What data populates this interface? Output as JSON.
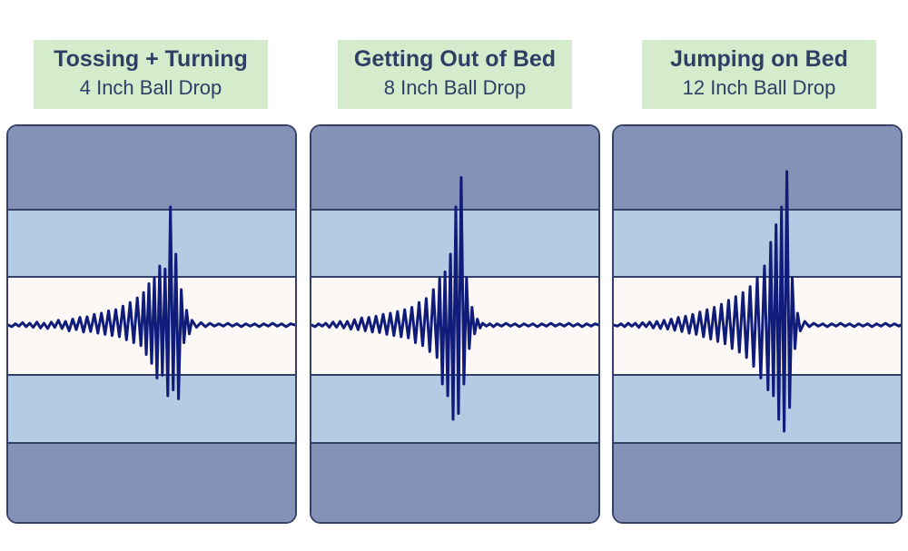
{
  "colors": {
    "title_bg": "#d4eccb",
    "title_text": "#2e3f66",
    "outer_band": "#8392b6",
    "middle_band": "#b3cce3",
    "center_band": "#fcf8f6",
    "band_border": "#34406a",
    "wave": "#101c7a"
  },
  "chart_data": [
    {
      "type": "line",
      "title": "Tossing + Turning",
      "subtitle": "4 Inch Ball Drop",
      "series": [
        {
          "x": [
            0,
            4,
            8,
            12,
            16,
            20,
            24,
            28,
            32,
            36,
            40,
            44,
            48,
            52,
            56,
            60,
            64,
            68,
            72,
            76,
            80,
            84,
            88,
            92,
            96,
            100,
            104,
            108,
            112,
            116,
            120,
            124,
            128,
            132,
            136,
            140,
            144,
            148,
            151,
            154,
            157,
            160,
            163,
            166,
            169,
            172,
            175,
            178,
            181,
            184,
            187,
            190,
            193,
            196,
            199,
            202,
            205,
            210,
            215,
            220,
            225,
            230,
            235,
            240,
            245,
            250,
            255,
            260,
            265,
            270,
            275,
            280,
            285,
            290,
            295,
            300,
            305,
            310,
            315,
            320
          ],
          "y": [
            0,
            -0.3,
            0.2,
            -0.2,
            0.4,
            -0.3,
            0.3,
            -0.4,
            0.5,
            -0.5,
            0.3,
            -0.6,
            0.5,
            -0.4,
            0.8,
            -0.6,
            0.6,
            -1.0,
            1.0,
            -0.8,
            1.3,
            -1.2,
            1.4,
            -1.1,
            1.8,
            -1.4,
            2.0,
            -1.6,
            2.4,
            -1.8,
            2.6,
            -2.0,
            3.2,
            -2.5,
            3.8,
            -3.0,
            4.6,
            -3.5,
            5.5,
            -5.0,
            7.0,
            -6.5,
            8.0,
            -9.0,
            10.0,
            -8.5,
            9.5,
            -12.0,
            20.0,
            -11.0,
            12.0,
            -12.5,
            6.0,
            -3.0,
            2.5,
            -1.5,
            0.8,
            -0.4,
            0.4,
            -0.3,
            0.3,
            -0.2,
            0.2,
            -0.2,
            0.3,
            -0.2,
            0.2,
            -0.3,
            0.2,
            -0.2,
            0.2,
            -0.3,
            0.2,
            -0.2,
            0.3,
            -0.2,
            0.2,
            -0.3,
            0.2,
            0
          ]
        }
      ],
      "ylim": [
        -30,
        30
      ]
    },
    {
      "type": "line",
      "title": "Getting Out of Bed",
      "subtitle": "8 Inch Ball Drop",
      "series": [
        {
          "x": [
            0,
            4,
            8,
            12,
            16,
            20,
            24,
            28,
            32,
            36,
            40,
            44,
            48,
            52,
            56,
            60,
            64,
            68,
            72,
            76,
            80,
            84,
            88,
            92,
            96,
            100,
            104,
            108,
            112,
            116,
            120,
            124,
            128,
            132,
            136,
            140,
            143,
            146,
            149,
            152,
            155,
            158,
            161,
            164,
            167,
            170,
            173,
            176,
            179,
            182,
            185,
            188,
            191,
            195,
            199,
            203,
            207,
            212,
            217,
            222,
            227,
            232,
            237,
            242,
            247,
            252,
            257,
            262,
            267,
            272,
            277,
            282,
            287,
            292,
            297,
            302,
            307,
            312,
            316,
            320
          ],
          "y": [
            0,
            -0.3,
            0.2,
            -0.2,
            0.3,
            -0.4,
            0.5,
            -0.4,
            0.6,
            -0.5,
            0.6,
            -0.7,
            0.9,
            -0.8,
            1.2,
            -1.0,
            1.3,
            -1.2,
            1.5,
            -1.3,
            1.8,
            -1.6,
            2.0,
            -1.8,
            2.3,
            -2.0,
            2.6,
            -2.2,
            3.0,
            -3.0,
            3.8,
            -3.5,
            4.5,
            -4.5,
            6.0,
            -5.5,
            8.0,
            -10.0,
            9.0,
            -12.0,
            12.0,
            -16.0,
            20.0,
            -15.0,
            25.0,
            -10.0,
            8.0,
            -4.0,
            3.0,
            -1.5,
            1.0,
            -0.5,
            0.3,
            -0.2,
            0.2,
            -0.3,
            0.2,
            -0.2,
            0.3,
            -0.2,
            0.2,
            -0.3,
            0.2,
            -0.2,
            0.2,
            -0.3,
            0.2,
            -0.2,
            0.3,
            -0.2,
            0.2,
            -0.2,
            0.3,
            -0.2,
            0.2,
            -0.3,
            0.2,
            -0.2,
            0.2,
            0
          ]
        }
      ],
      "ylim": [
        -30,
        30
      ]
    },
    {
      "type": "line",
      "title": "Jumping on Bed",
      "subtitle": "12 Inch Ball Drop",
      "series": [
        {
          "x": [
            0,
            4,
            8,
            12,
            16,
            20,
            24,
            28,
            32,
            36,
            40,
            44,
            48,
            52,
            56,
            60,
            64,
            68,
            72,
            76,
            80,
            84,
            88,
            92,
            96,
            100,
            104,
            108,
            112,
            116,
            120,
            124,
            128,
            132,
            136,
            140,
            144,
            148,
            152,
            156,
            160,
            164,
            168,
            172,
            175,
            178,
            181,
            184,
            187,
            190,
            193,
            196,
            199,
            202,
            205,
            208,
            213,
            218,
            223,
            228,
            233,
            238,
            243,
            248,
            253,
            258,
            263,
            268,
            273,
            278,
            283,
            288,
            293,
            298,
            303,
            308,
            313,
            318,
            320
          ],
          "y": [
            0,
            -0.2,
            0.2,
            -0.3,
            0.3,
            -0.2,
            0.3,
            -0.4,
            0.4,
            -0.3,
            0.5,
            -0.5,
            0.6,
            -0.6,
            0.8,
            -0.7,
            1.0,
            -0.9,
            1.3,
            -1.1,
            1.5,
            -1.4,
            1.8,
            -1.6,
            2.2,
            -2.0,
            2.6,
            -2.4,
            3.0,
            -2.8,
            3.5,
            -3.2,
            4.2,
            -4.0,
            4.8,
            -4.6,
            5.5,
            -5.5,
            6.5,
            -7.0,
            8.0,
            -9.0,
            10.0,
            -11.0,
            14.0,
            -12.0,
            17.0,
            -16.0,
            20.0,
            -18.0,
            26.0,
            -14.0,
            8.0,
            -4.0,
            2.0,
            -1.0,
            0.6,
            -0.3,
            0.3,
            -0.2,
            0.2,
            -0.3,
            0.2,
            -0.2,
            0.3,
            -0.2,
            0.2,
            -0.3,
            0.2,
            -0.2,
            0.2,
            -0.3,
            0.2,
            -0.2,
            0.3,
            -0.2,
            0.2,
            -0.2,
            0
          ]
        }
      ],
      "ylim": [
        -30,
        30
      ]
    }
  ]
}
